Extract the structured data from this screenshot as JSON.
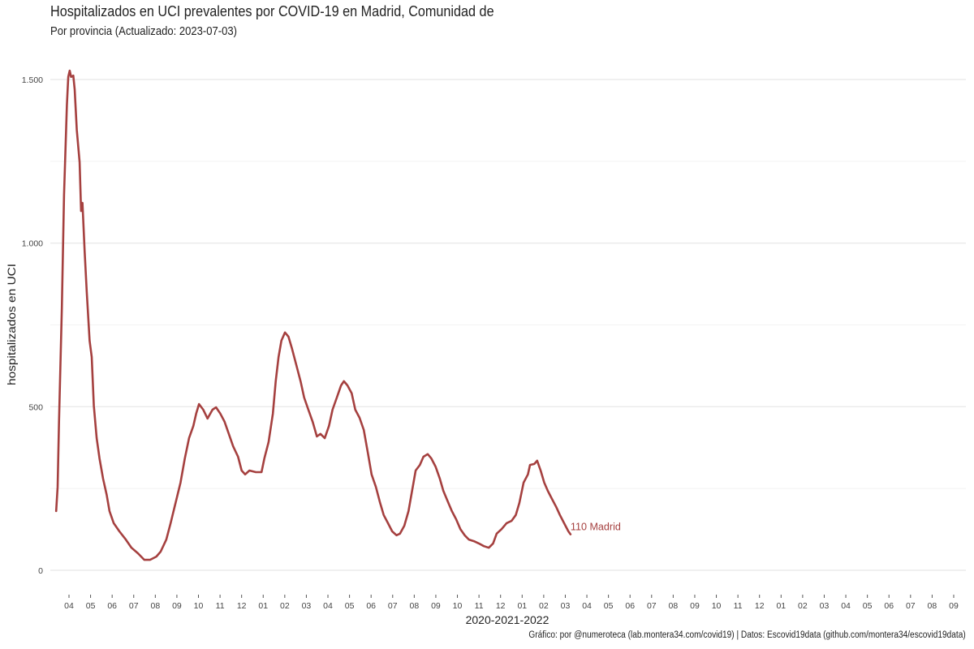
{
  "chart_data": {
    "type": "line",
    "title": "Hospitalizados en UCI prevalentes por COVID-19 en Madrid, Comunidad de",
    "subtitle": "Por provincia  (Actualizado: 2023-07-03)",
    "xlabel": "2020-2021-2022",
    "ylabel": "hospitalizados en UCI",
    "caption": "Gráfico: por @numeroteca (lab.montera34.com/covid19) | Datos: Escovid19data (github.com/montera34/escovid19data)",
    "x_unit": "days since 2020-04-01",
    "xlim_days": [
      -24,
      1270
    ],
    "ylim": [
      -60,
      1580
    ],
    "yticks": [
      0,
      500,
      1000,
      1500
    ],
    "ytick_labels": [
      "0",
      "500",
      "1.000",
      "1.500"
    ],
    "yminor": [
      250,
      750,
      1250
    ],
    "xtick_labels": [
      "04",
      "05",
      "06",
      "07",
      "08",
      "09",
      "10",
      "11",
      "12",
      "01",
      "02",
      "03",
      "04",
      "05",
      "06",
      "07",
      "08",
      "09",
      "10",
      "11",
      "12",
      "01",
      "02",
      "03",
      "04",
      "05",
      "06",
      "07",
      "08",
      "09",
      "10",
      "11",
      "12",
      "01",
      "02",
      "03",
      "04",
      "05",
      "06",
      "07",
      "08",
      "09"
    ],
    "grid": true,
    "legend": "none",
    "series": [
      {
        "name": "Madrid",
        "color": "#a5403f",
        "end_label": "110 Madrid",
        "points": [
          [
            -18,
            181
          ],
          [
            -16,
            255
          ],
          [
            -14,
            454
          ],
          [
            -10,
            801
          ],
          [
            -7,
            1148
          ],
          [
            -3,
            1421
          ],
          [
            -1,
            1508
          ],
          [
            1,
            1527
          ],
          [
            3,
            1508
          ],
          [
            6,
            1512
          ],
          [
            8,
            1470
          ],
          [
            11,
            1346
          ],
          [
            15,
            1247
          ],
          [
            17,
            1098
          ],
          [
            19,
            1123
          ],
          [
            22,
            974
          ],
          [
            25,
            850
          ],
          [
            29,
            702
          ],
          [
            32,
            652
          ],
          [
            35,
            503
          ],
          [
            39,
            404
          ],
          [
            43,
            342
          ],
          [
            48,
            280
          ],
          [
            53,
            231
          ],
          [
            57,
            181
          ],
          [
            63,
            144
          ],
          [
            71,
            119
          ],
          [
            80,
            94
          ],
          [
            88,
            69
          ],
          [
            97,
            52
          ],
          [
            106,
            32
          ],
          [
            114,
            32
          ],
          [
            123,
            42
          ],
          [
            129,
            57
          ],
          [
            137,
            94
          ],
          [
            143,
            144
          ],
          [
            150,
            206
          ],
          [
            157,
            268
          ],
          [
            163,
            342
          ],
          [
            169,
            404
          ],
          [
            175,
            441
          ],
          [
            179,
            479
          ],
          [
            183,
            508
          ],
          [
            189,
            491
          ],
          [
            195,
            464
          ],
          [
            202,
            491
          ],
          [
            207,
            498
          ],
          [
            213,
            479
          ],
          [
            219,
            454
          ],
          [
            225,
            417
          ],
          [
            231,
            379
          ],
          [
            238,
            347
          ],
          [
            243,
            305
          ],
          [
            248,
            293
          ],
          [
            254,
            305
          ],
          [
            263,
            300
          ],
          [
            271,
            300
          ],
          [
            275,
            342
          ],
          [
            281,
            392
          ],
          [
            287,
            479
          ],
          [
            291,
            578
          ],
          [
            295,
            652
          ],
          [
            299,
            702
          ],
          [
            304,
            727
          ],
          [
            309,
            714
          ],
          [
            314,
            677
          ],
          [
            320,
            627
          ],
          [
            326,
            578
          ],
          [
            331,
            528
          ],
          [
            337,
            491
          ],
          [
            343,
            454
          ],
          [
            349,
            409
          ],
          [
            354,
            417
          ],
          [
            360,
            404
          ],
          [
            366,
            441
          ],
          [
            371,
            491
          ],
          [
            377,
            528
          ],
          [
            383,
            565
          ],
          [
            387,
            578
          ],
          [
            392,
            565
          ],
          [
            398,
            541
          ],
          [
            403,
            491
          ],
          [
            409,
            466
          ],
          [
            415,
            429
          ],
          [
            421,
            355
          ],
          [
            426,
            293
          ],
          [
            432,
            255
          ],
          [
            438,
            206
          ],
          [
            443,
            169
          ],
          [
            449,
            144
          ],
          [
            455,
            119
          ],
          [
            461,
            107
          ],
          [
            466,
            112
          ],
          [
            472,
            136
          ],
          [
            478,
            181
          ],
          [
            483,
            243
          ],
          [
            488,
            305
          ],
          [
            494,
            322
          ],
          [
            499,
            347
          ],
          [
            505,
            355
          ],
          [
            510,
            342
          ],
          [
            516,
            317
          ],
          [
            522,
            280
          ],
          [
            527,
            243
          ],
          [
            534,
            206
          ],
          [
            539,
            181
          ],
          [
            545,
            156
          ],
          [
            551,
            126
          ],
          [
            557,
            107
          ],
          [
            563,
            94
          ],
          [
            570,
            89
          ],
          [
            577,
            82
          ],
          [
            584,
            74
          ],
          [
            591,
            69
          ],
          [
            597,
            82
          ],
          [
            602,
            112
          ],
          [
            609,
            126
          ],
          [
            616,
            144
          ],
          [
            623,
            151
          ],
          [
            629,
            169
          ],
          [
            634,
            206
          ],
          [
            640,
            268
          ],
          [
            646,
            293
          ],
          [
            649,
            322
          ],
          [
            655,
            325
          ],
          [
            659,
            335
          ],
          [
            664,
            305
          ],
          [
            669,
            268
          ],
          [
            674,
            243
          ],
          [
            680,
            218
          ],
          [
            686,
            193
          ],
          [
            691,
            169
          ],
          [
            697,
            144
          ],
          [
            703,
            119
          ],
          [
            706,
            110
          ]
        ]
      }
    ]
  }
}
